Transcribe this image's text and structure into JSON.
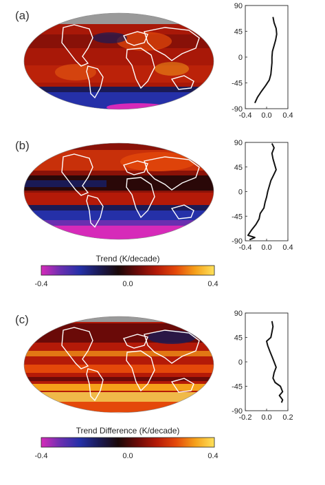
{
  "panels": [
    {
      "label": "(a)"
    },
    {
      "label": "(b)"
    },
    {
      "label": "(c)"
    }
  ],
  "colorbars": [
    {
      "title": "Trend (K/decade)",
      "ticks": [
        "-0.4",
        "0.0",
        "0.4"
      ]
    },
    {
      "title": "Trend Difference (K/decade)",
      "ticks": [
        "-0.4",
        "0.0",
        "0.4"
      ]
    }
  ],
  "colors": {
    "colormap": [
      "#d62ab9",
      "#6a2fb0",
      "#2530a8",
      "#1a1a55",
      "#1a0808",
      "#6a0a08",
      "#b41a08",
      "#e4480a",
      "#f5a01a",
      "#ffe15a"
    ],
    "land_outline": "#ffffff",
    "missing_data": "#9a9a9a",
    "profile_line": "#111111"
  },
  "chart_data": [
    {
      "type": "line",
      "panel": "(a)",
      "xlim": [
        -0.4,
        0.4
      ],
      "ylim": [
        -90,
        90
      ],
      "xticks": [
        "-0.4",
        "0.0",
        "0.4"
      ],
      "yticks": [
        "90",
        "45",
        "0",
        "-45",
        "-90"
      ],
      "series": [
        {
          "y": [
            -80,
            -70,
            -60,
            -50,
            -40,
            -30,
            -20,
            -10,
            0,
            10,
            20,
            30,
            40,
            50,
            60,
            70
          ],
          "x": [
            -0.22,
            -0.17,
            -0.1,
            -0.02,
            0.05,
            0.08,
            0.09,
            0.1,
            0.1,
            0.11,
            0.14,
            0.17,
            0.19,
            0.18,
            0.14,
            0.12
          ]
        }
      ]
    },
    {
      "type": "line",
      "panel": "(b)",
      "xlim": [
        -0.4,
        0.4
      ],
      "ylim": [
        -90,
        90
      ],
      "xticks": [
        "-0.4",
        "0.0",
        "0.4"
      ],
      "yticks": [
        "90",
        "45",
        "0",
        "-45",
        "-90"
      ],
      "series": [
        {
          "y": [
            -88,
            -84,
            -80,
            -70,
            -60,
            -50,
            -40,
            -30,
            -20,
            -10,
            0,
            10,
            20,
            30,
            40,
            50,
            60,
            70,
            80,
            88
          ],
          "x": [
            -0.32,
            -0.22,
            -0.35,
            -0.28,
            -0.2,
            -0.14,
            -0.12,
            -0.05,
            -0.03,
            0.0,
            0.02,
            0.05,
            0.08,
            0.13,
            0.18,
            0.15,
            0.12,
            0.1,
            0.14,
            0.1
          ]
        }
      ]
    },
    {
      "type": "line",
      "panel": "(c)",
      "xlim": [
        -0.2,
        0.2
      ],
      "ylim": [
        -90,
        90
      ],
      "xticks": [
        "-0.2",
        "0.0",
        "0.2"
      ],
      "yticks": [
        "90",
        "45",
        "0",
        "-45",
        "-90"
      ],
      "series": [
        {
          "y": [
            -75,
            -70,
            -62,
            -55,
            -45,
            -38,
            -30,
            -20,
            -10,
            0,
            10,
            20,
            30,
            38,
            45,
            55,
            65,
            75
          ],
          "x": [
            0.14,
            0.15,
            0.12,
            0.15,
            0.13,
            0.08,
            0.06,
            0.07,
            0.09,
            0.07,
            0.05,
            0.03,
            0.01,
            0.0,
            0.04,
            0.05,
            0.06,
            0.05
          ]
        }
      ]
    }
  ]
}
